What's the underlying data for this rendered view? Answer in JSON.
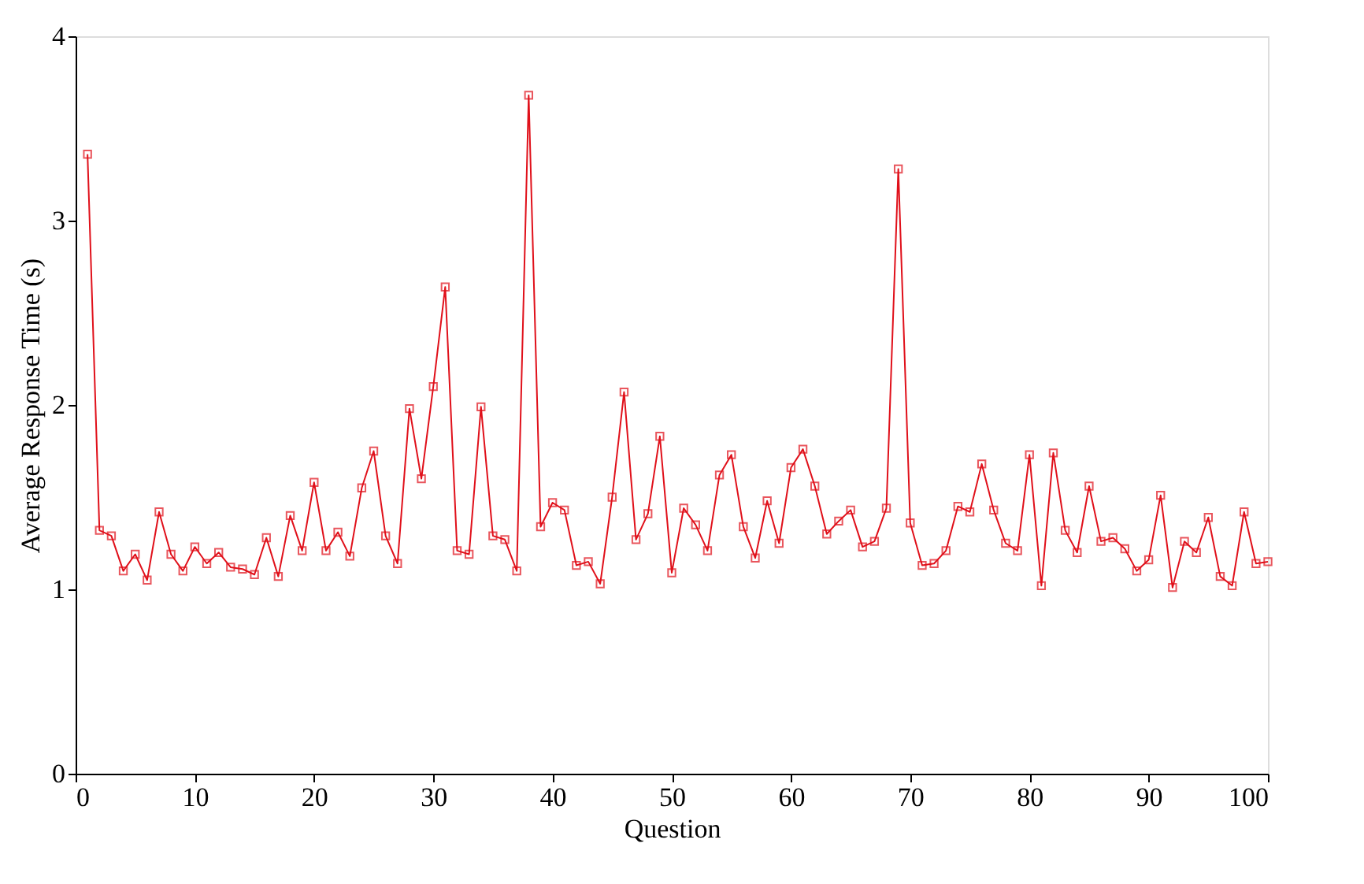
{
  "chart_data": {
    "type": "line",
    "xlabel": "Question",
    "ylabel": "Average Response Time (s)",
    "x": [
      1,
      2,
      3,
      4,
      5,
      6,
      7,
      8,
      9,
      10,
      11,
      12,
      13,
      14,
      15,
      16,
      17,
      18,
      19,
      20,
      21,
      22,
      23,
      24,
      25,
      26,
      27,
      28,
      29,
      30,
      31,
      32,
      33,
      34,
      35,
      36,
      37,
      38,
      39,
      40,
      41,
      42,
      43,
      44,
      45,
      46,
      47,
      48,
      49,
      50,
      51,
      52,
      53,
      54,
      55,
      56,
      57,
      58,
      59,
      60,
      61,
      62,
      63,
      64,
      65,
      66,
      67,
      68,
      69,
      70,
      71,
      72,
      73,
      74,
      75,
      76,
      77,
      78,
      79,
      80,
      81,
      82,
      83,
      84,
      85,
      86,
      87,
      88,
      89,
      90,
      91,
      92,
      93,
      94,
      95,
      96,
      97,
      98,
      99,
      100
    ],
    "series": [
      {
        "color": "#e0101a",
        "values": [
          3.36,
          1.32,
          1.29,
          1.1,
          1.19,
          1.05,
          1.42,
          1.19,
          1.1,
          1.23,
          1.14,
          1.2,
          1.12,
          1.11,
          1.08,
          1.28,
          1.07,
          1.4,
          1.21,
          1.58,
          1.21,
          1.31,
          1.18,
          1.55,
          1.75,
          1.29,
          1.14,
          1.98,
          1.6,
          2.1,
          2.64,
          1.21,
          1.19,
          1.99,
          1.29,
          1.27,
          1.1,
          3.68,
          1.34,
          1.47,
          1.43,
          1.13,
          1.15,
          1.03,
          1.5,
          2.07,
          1.27,
          1.41,
          1.83,
          1.09,
          1.44,
          1.35,
          1.21,
          1.62,
          1.73,
          1.34,
          1.17,
          1.48,
          1.25,
          1.66,
          1.76,
          1.56,
          1.3,
          1.37,
          1.43,
          1.23,
          1.26,
          1.44,
          3.28,
          1.36,
          1.13,
          1.14,
          1.21,
          1.45,
          1.42,
          1.68,
          1.43,
          1.25,
          1.21,
          1.73,
          1.02,
          1.74,
          1.32,
          1.2,
          1.56,
          1.26,
          1.28,
          1.22,
          1.1,
          1.16,
          1.51,
          1.01,
          1.26,
          1.2,
          1.39,
          1.07,
          1.02,
          1.42,
          1.14,
          1.15
        ]
      }
    ],
    "xlim": [
      0,
      100
    ],
    "ylim": [
      0,
      4
    ],
    "xticks": [
      0,
      10,
      20,
      30,
      40,
      50,
      60,
      70,
      80,
      90,
      100
    ],
    "yticks": [
      0,
      1,
      2,
      3,
      4
    ],
    "grid": false,
    "legend": false,
    "marker": "square",
    "line_style": "solid"
  }
}
